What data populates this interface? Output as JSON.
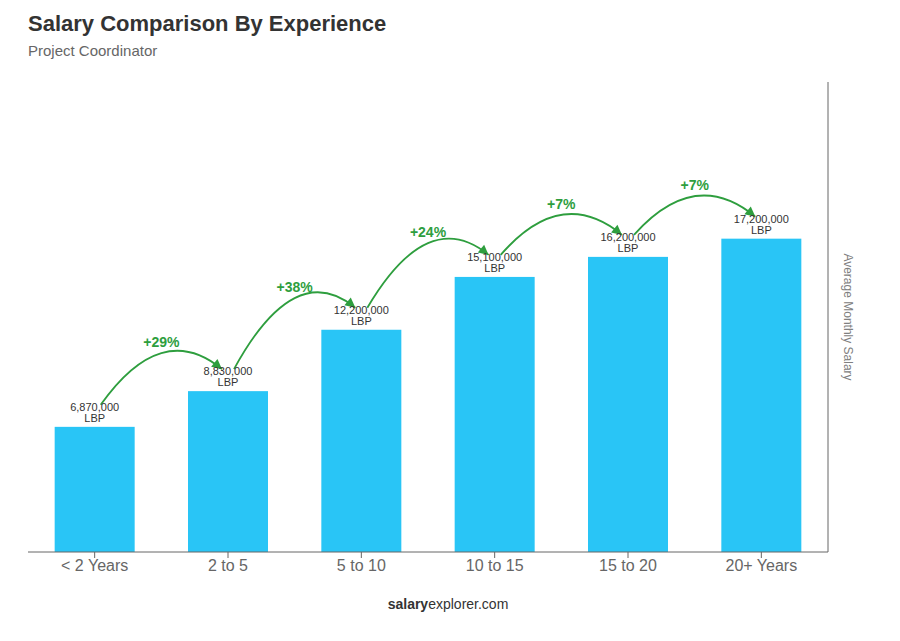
{
  "chart_data": {
    "type": "bar",
    "title": "Salary Comparison By Experience",
    "subtitle": "Project Coordinator",
    "ylabel": "Average Monthly Salary",
    "categories": [
      "< 2 Years",
      "2 to 5",
      "5 to 10",
      "10 to 15",
      "15 to 20",
      "20+ Years"
    ],
    "values": [
      6870000,
      8830000,
      12200000,
      15100000,
      16200000,
      17200000
    ],
    "value_labels": [
      "6,870,000 LBP",
      "8,830,000 LBP",
      "12,200,000 LBP",
      "15,100,000 LBP",
      "16,200,000 LBP",
      "17,200,000 LBP"
    ],
    "data_labels": true,
    "color": "#29c5f6",
    "ylim": [
      0,
      25800000
    ],
    "tick_labels": "x",
    "grid": false,
    "annotations": [
      {
        "text": "+29%",
        "from": "< 2 Years",
        "to": "2 to 5"
      },
      {
        "text": "+38%",
        "from": "2 to 5",
        "to": "5 to 10"
      },
      {
        "text": "+24%",
        "from": "5 to 10",
        "to": "10 to 15"
      },
      {
        "text": "+7%",
        "from": "10 to 15",
        "to": "15 to 20"
      },
      {
        "text": "+7%",
        "from": "15 to 20",
        "to": "20+ Years"
      },
      {
        "text": "salary"
      },
      {
        "text": "explorer.com"
      }
    ]
  }
}
